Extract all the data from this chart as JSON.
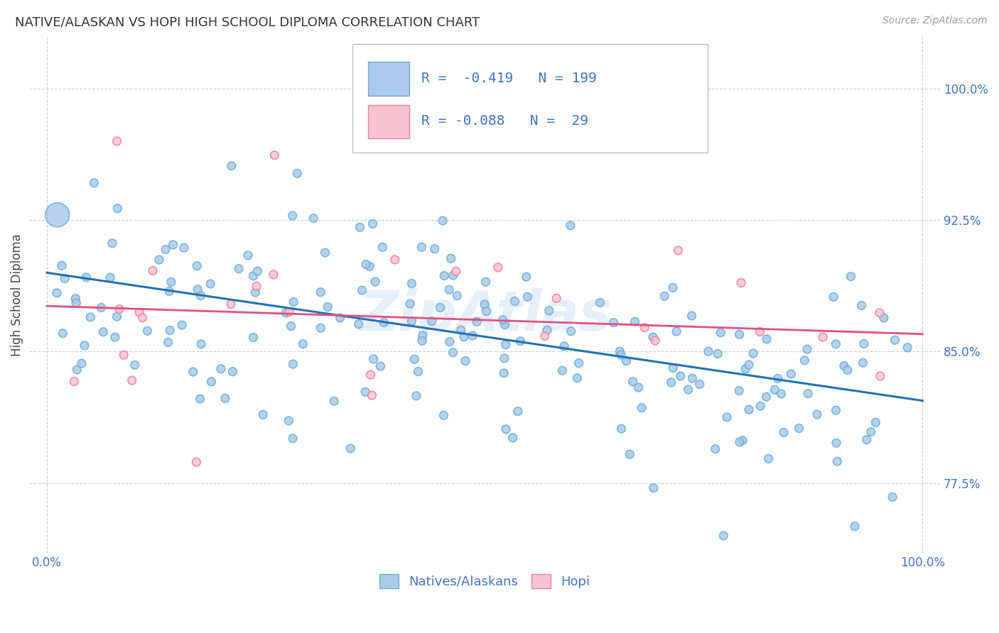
{
  "title": "NATIVE/ALASKAN VS HOPI HIGH SCHOOL DIPLOMA CORRELATION CHART",
  "source": "Source: ZipAtlas.com",
  "ylabel": "High School Diploma",
  "legend_label1": "Natives/Alaskans",
  "legend_label2": "Hopi",
  "blue_color": "#aac9e8",
  "blue_edge": "#6baed6",
  "pink_color": "#f9c4d2",
  "pink_edge": "#e87fa0",
  "line_blue": "#2171b5",
  "line_pink": "#e05080",
  "background": "#ffffff",
  "grid_color": "#cccccc",
  "title_color": "#333333",
  "axis_label_color": "#4472c4",
  "ytick_vals": [
    0.775,
    0.85,
    0.925,
    1.0
  ],
  "ytick_labels": [
    "77.5%",
    "85.0%",
    "92.5%",
    "100.0%"
  ],
  "ylim_low": 0.735,
  "ylim_high": 1.03,
  "xlim_low": -0.02,
  "xlim_high": 1.02,
  "blue_line_y0": 0.895,
  "blue_line_y1": 0.822,
  "pink_line_y0": 0.876,
  "pink_line_y1": 0.86
}
